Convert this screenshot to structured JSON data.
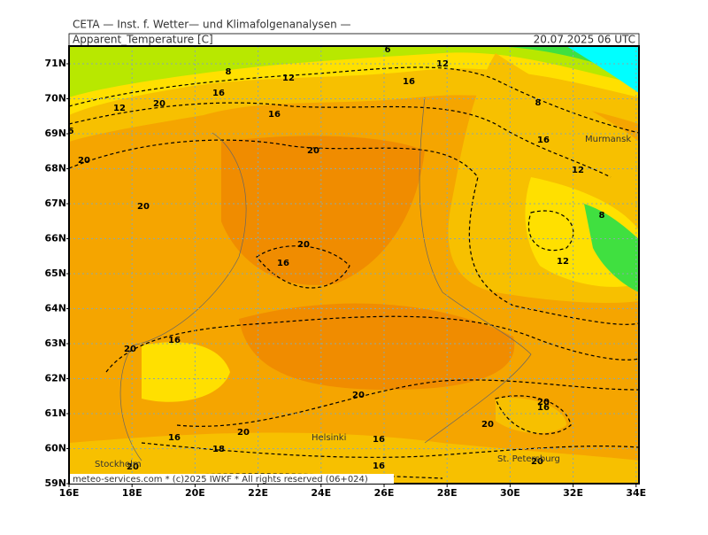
{
  "header": "CETA — Inst. f. Wetter— und Klimafolgenanalysen —",
  "title": "Apparent_Temperature [C]",
  "datetime": "20.07.2025 06 UTC",
  "lat_labels": [
    "59N",
    "60N",
    "61N",
    "62N",
    "63N",
    "64N",
    "65N",
    "66N",
    "67N",
    "68N",
    "69N",
    "70N",
    "71N"
  ],
  "lon_labels": [
    "16E",
    "18E",
    "20E",
    "22E",
    "24E",
    "26E",
    "28E",
    "30E",
    "32E",
    "34E"
  ],
  "contour_labels": [
    8,
    6,
    12,
    12,
    16,
    16,
    12,
    20,
    16,
    8,
    6,
    20,
    20,
    16,
    12,
    20,
    8,
    20,
    16,
    12,
    16,
    20,
    20,
    20,
    16,
    20,
    16,
    20,
    18,
    16,
    16,
    20,
    20
  ],
  "cities": [
    "Murmansk",
    "Helsinki",
    "Stockholm",
    "St. Petersburg"
  ],
  "footer": "meteo-services.com * (c)2025 IWKF * All rights reserved (06+024)"
}
